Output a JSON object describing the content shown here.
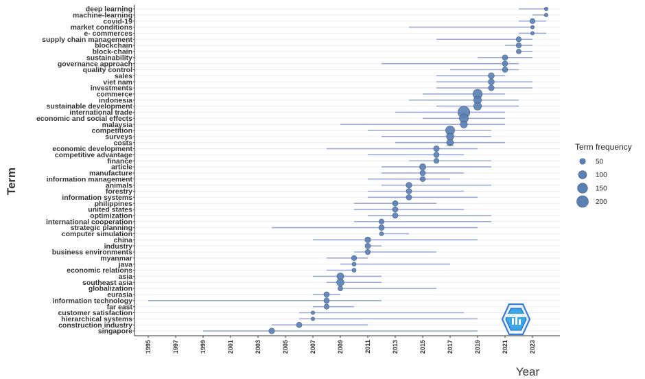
{
  "chart_data": {
    "type": "scatter",
    "xlabel": "Year",
    "ylabel": "Term",
    "xlim": [
      1994,
      2025
    ],
    "x_ticks": [
      "1995",
      "1997",
      "1999",
      "2001",
      "2003",
      "2005",
      "2007",
      "2009",
      "2011",
      "2013",
      "2015",
      "2017",
      "2019",
      "2021",
      "2023"
    ],
    "grid": true,
    "legend": {
      "title": "Term frequency",
      "placement": "right",
      "entries": [
        50,
        100,
        150,
        200
      ]
    },
    "colors": {
      "point": "#5b80b2",
      "line": "#9aa9d6",
      "grid": "#ebebeb",
      "axis": "#333333"
    },
    "terms": [
      {
        "term": "deep learning",
        "start": 2022,
        "median": 2024,
        "end": 2024,
        "freq": 20
      },
      {
        "term": "machine-learning",
        "start": 2023,
        "median": 2024,
        "end": 2024,
        "freq": 20
      },
      {
        "term": "covid-19",
        "start": 2022,
        "median": 2023,
        "end": 2024,
        "freq": 40
      },
      {
        "term": "market conditions",
        "start": 2014,
        "median": 2023,
        "end": 2023,
        "freq": 20
      },
      {
        "term": "e- commerces",
        "start": 2022,
        "median": 2023,
        "end": 2024,
        "freq": 20
      },
      {
        "term": "supply chain management",
        "start": 2016,
        "median": 2022,
        "end": 2023,
        "freq": 40
      },
      {
        "term": "blockchain",
        "start": 2021,
        "median": 2022,
        "end": 2023,
        "freq": 40
      },
      {
        "term": "block-chain",
        "start": 2022,
        "median": 2022,
        "end": 2023,
        "freq": 35
      },
      {
        "term": "sustainability",
        "start": 2019,
        "median": 2021,
        "end": 2023,
        "freq": 45
      },
      {
        "term": "governance approach",
        "start": 2012,
        "median": 2021,
        "end": 2022,
        "freq": 45
      },
      {
        "term": "quality control",
        "start": 2017,
        "median": 2021,
        "end": 2022,
        "freq": 45
      },
      {
        "term": "sales",
        "start": 2016,
        "median": 2020,
        "end": 2021,
        "freq": 55
      },
      {
        "term": "viet nam",
        "start": 2016,
        "median": 2020,
        "end": 2023,
        "freq": 55
      },
      {
        "term": "investments",
        "start": 2016,
        "median": 2020,
        "end": 2023,
        "freq": 50
      },
      {
        "term": "commerce",
        "start": 2015,
        "median": 2019,
        "end": 2021,
        "freq": 130
      },
      {
        "term": "indonesia",
        "start": 2014,
        "median": 2019,
        "end": 2022,
        "freq": 90
      },
      {
        "term": "sustainable development",
        "start": 2016,
        "median": 2019,
        "end": 2022,
        "freq": 90
      },
      {
        "term": "international trade",
        "start": 2013,
        "median": 2018,
        "end": 2021,
        "freq": 210
      },
      {
        "term": "economic and social effects",
        "start": 2015,
        "median": 2018,
        "end": 2021,
        "freq": 120
      },
      {
        "term": "malaysia",
        "start": 2009,
        "median": 2018,
        "end": 2021,
        "freq": 75
      },
      {
        "term": "competition",
        "start": 2011,
        "median": 2017,
        "end": 2020,
        "freq": 120
      },
      {
        "term": "surveys",
        "start": 2012,
        "median": 2017,
        "end": 2020,
        "freq": 80
      },
      {
        "term": "costs",
        "start": 2013,
        "median": 2017,
        "end": 2021,
        "freq": 70
      },
      {
        "term": "economic development",
        "start": 2008,
        "median": 2016,
        "end": 2019,
        "freq": 50
      },
      {
        "term": "competitive advantage",
        "start": 2011,
        "median": 2016,
        "end": 2018,
        "freq": 45
      },
      {
        "term": "finance",
        "start": 2014,
        "median": 2016,
        "end": 2020,
        "freq": 40
      },
      {
        "term": "article",
        "start": 2012,
        "median": 2015,
        "end": 2020,
        "freq": 60
      },
      {
        "term": "manufacture",
        "start": 2012,
        "median": 2015,
        "end": 2018,
        "freq": 45
      },
      {
        "term": "information management",
        "start": 2011,
        "median": 2015,
        "end": 2017,
        "freq": 40
      },
      {
        "term": "animals",
        "start": 2012,
        "median": 2014,
        "end": 2020,
        "freq": 50
      },
      {
        "term": "forestry",
        "start": 2011,
        "median": 2014,
        "end": 2018,
        "freq": 45
      },
      {
        "term": "information systems",
        "start": 2011,
        "median": 2014,
        "end": 2019,
        "freq": 45
      },
      {
        "term": "philippines",
        "start": 2010,
        "median": 2013,
        "end": 2016,
        "freq": 45
      },
      {
        "term": "united states",
        "start": 2010,
        "median": 2013,
        "end": 2018,
        "freq": 45
      },
      {
        "term": "optimization",
        "start": 2011,
        "median": 2013,
        "end": 2020,
        "freq": 45
      },
      {
        "term": "international cooperation",
        "start": 2010,
        "median": 2012,
        "end": 2020,
        "freq": 40
      },
      {
        "term": "strategic planning",
        "start": 2004,
        "median": 2012,
        "end": 2019,
        "freq": 45
      },
      {
        "term": "computer simulation",
        "start": 2012,
        "median": 2012,
        "end": 2014,
        "freq": 25
      },
      {
        "term": "china",
        "start": 2007,
        "median": 2011,
        "end": 2019,
        "freq": 50
      },
      {
        "term": "industry",
        "start": 2011,
        "median": 2011,
        "end": 2012,
        "freq": 45
      },
      {
        "term": "business environments",
        "start": 2010,
        "median": 2011,
        "end": 2016,
        "freq": 40
      },
      {
        "term": "myanmar",
        "start": 2008,
        "median": 2010,
        "end": 2011,
        "freq": 40
      },
      {
        "term": "java",
        "start": 2009,
        "median": 2010,
        "end": 2017,
        "freq": 25
      },
      {
        "term": "economic relations",
        "start": 2008,
        "median": 2010,
        "end": 2010,
        "freq": 25
      },
      {
        "term": "asia",
        "start": 2007,
        "median": 2009,
        "end": 2012,
        "freq": 70
      },
      {
        "term": "southeast asia",
        "start": 2008,
        "median": 2009,
        "end": 2012,
        "freq": 80
      },
      {
        "term": "globalization",
        "start": 2009,
        "median": 2009,
        "end": 2016,
        "freq": 35
      },
      {
        "term": "eurasia",
        "start": 2007,
        "median": 2008,
        "end": 2009,
        "freq": 45
      },
      {
        "term": "information technology",
        "start": 1995,
        "median": 2008,
        "end": 2012,
        "freq": 45
      },
      {
        "term": "far east",
        "start": 2007,
        "median": 2008,
        "end": 2010,
        "freq": 40
      },
      {
        "term": "customer satisfaction",
        "start": 2006,
        "median": 2007,
        "end": 2018,
        "freq": 20
      },
      {
        "term": "hierarchical systems",
        "start": 2006,
        "median": 2007,
        "end": 2019,
        "freq": 20
      },
      {
        "term": "construction industry",
        "start": 2004,
        "median": 2006,
        "end": 2011,
        "freq": 45
      },
      {
        "term": "singapore",
        "start": 1999,
        "median": 2004,
        "end": 2019,
        "freq": 50
      }
    ]
  }
}
